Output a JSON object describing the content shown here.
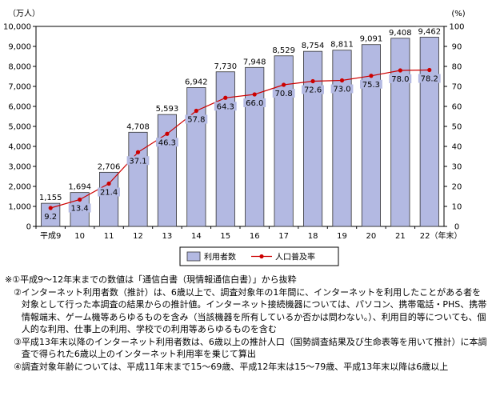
{
  "chart_data": {
    "type": "bar",
    "categories": [
      "平成9",
      "10",
      "11",
      "12",
      "13",
      "14",
      "15",
      "16",
      "17",
      "18",
      "19",
      "20",
      "21",
      "22（年末）"
    ],
    "series": [
      {
        "name": "利用者数",
        "type": "bar",
        "axis": "left",
        "values": [
          1155,
          1694,
          2706,
          4708,
          5593,
          6942,
          7730,
          7948,
          8529,
          8754,
          8811,
          9091,
          9408,
          9462
        ],
        "labels": [
          "1,155",
          "1,694",
          "2,706",
          "4,708",
          "5,593",
          "6,942",
          "7,730",
          "7,948",
          "8,529",
          "8,754",
          "8,811",
          "9,091",
          "9,408",
          "9,462"
        ]
      },
      {
        "name": "人口普及率",
        "type": "line",
        "axis": "right",
        "values": [
          9.2,
          13.4,
          21.4,
          37.1,
          46.3,
          57.8,
          64.3,
          66.0,
          70.8,
          72.6,
          73.0,
          75.3,
          78.0,
          78.2
        ],
        "labels": [
          "9.2",
          "13.4",
          "21.4",
          "37.1",
          "46.3",
          "57.8",
          "64.3",
          "66.0",
          "70.8",
          "72.6",
          "73.0",
          "75.3",
          "78.0",
          "78.2"
        ]
      }
    ],
    "ylabel": "（万人）",
    "y2label": "(%)",
    "ylim": [
      0,
      10000
    ],
    "y2lim": [
      0,
      100
    ],
    "yticks": [
      "0",
      "1,000",
      "2,000",
      "3,000",
      "4,000",
      "5,000",
      "6,000",
      "7,000",
      "8,000",
      "9,000",
      "10,000"
    ],
    "y2ticks": [
      "0",
      "10",
      "20",
      "30",
      "40",
      "50",
      "60",
      "70",
      "80",
      "90",
      "100"
    ],
    "grid": false,
    "legend_position": "bottom-center",
    "colors": {
      "bar_fill": "#b3b9e2",
      "bar_stroke": "#333333",
      "line": "#cc0000",
      "marker": "#cc0000"
    }
  },
  "notes": [
    {
      "mark": "※①",
      "text": "平成9～12年末までの数値は「通信白書（現情報通信白書）」から抜粋"
    },
    {
      "mark": "②",
      "text": "インターネット利用者数（推計）は、6歳以上で、調査対象年の1年間に、インターネットを利用したことがある者を対象として行った本調査の結果からの推計値。インターネット接続機器については、パソコン、携帯電話・PHS、携帯情報端末、ゲーム機等あらゆるものを含み（当該機器を所有しているか否かは問わない。）、利用目的等についても、個人的な利用、仕事上の利用、学校での利用等あらゆるものを含む"
    },
    {
      "mark": "③",
      "text": "平成13年末以降のインターネット利用者数は、6歳以上の推計人口（国勢調査結果及び生命表等を用いて推計）に本調査で得られた6歳以上のインターネット利用率を乗じて算出"
    },
    {
      "mark": "④",
      "text": "調査対象年齢については、平成11年末まで15～69歳、平成12年末は15～79歳、平成13年末以降は6歳以上"
    }
  ]
}
